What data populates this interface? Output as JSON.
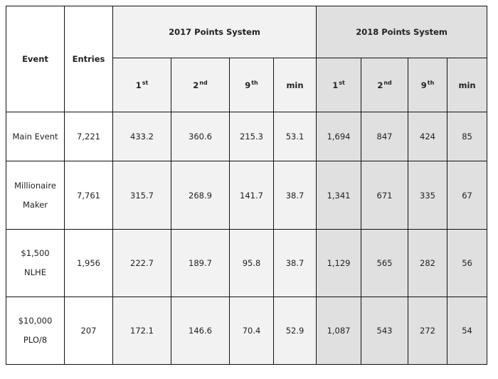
{
  "table": {
    "headers": {
      "event": "Event",
      "entries": "Entries",
      "group_2017": "2017 Points System",
      "group_2018": "2018 Points System",
      "sub": [
        {
          "base": "1",
          "sup": "st"
        },
        {
          "base": "2",
          "sup": "nd"
        },
        {
          "base": "9",
          "sup": "th"
        },
        {
          "base": "min",
          "sup": ""
        }
      ]
    },
    "rows": [
      {
        "event": "Main Event",
        "entries": "7,221",
        "p2017": [
          "433.2",
          "360.6",
          "215.3",
          "53.1"
        ],
        "p2018": [
          "1,694",
          "847",
          "424",
          "85"
        ]
      },
      {
        "event": "Millionaire Maker",
        "entries": "7,761",
        "p2017": [
          "315.7",
          "268.9",
          "141.7",
          "38.7"
        ],
        "p2018": [
          "1,341",
          "671",
          "335",
          "67"
        ]
      },
      {
        "event": "$1,500 NLHE",
        "entries": "1,956",
        "p2017": [
          "222.7",
          "189.7",
          "95.8",
          "38.7"
        ],
        "p2018": [
          "1,129",
          "565",
          "282",
          "56"
        ]
      },
      {
        "event": "$10,000 PLO/8",
        "entries": "207",
        "p2017": [
          "172.1",
          "146.6",
          "70.4",
          "52.9"
        ],
        "p2018": [
          "1,087",
          "543",
          "272",
          "54"
        ]
      }
    ]
  }
}
